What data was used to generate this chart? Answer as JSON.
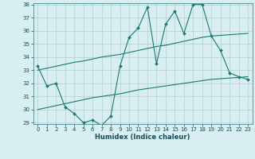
{
  "x": [
    0,
    1,
    2,
    3,
    4,
    5,
    6,
    7,
    8,
    9,
    10,
    11,
    12,
    13,
    14,
    15,
    16,
    17,
    18,
    19,
    20,
    21,
    22,
    23
  ],
  "line1": [
    33.3,
    31.8,
    32.0,
    30.2,
    29.7,
    29.0,
    29.2,
    28.8,
    29.5,
    33.3,
    35.5,
    36.2,
    37.8,
    33.5,
    36.5,
    37.5,
    35.8,
    38.0,
    38.0,
    35.6,
    34.5,
    32.8,
    32.5,
    32.3
  ],
  "line2": [
    33.0,
    33.15,
    33.3,
    33.45,
    33.6,
    33.7,
    33.85,
    34.0,
    34.1,
    34.2,
    34.35,
    34.5,
    34.65,
    34.8,
    34.9,
    35.05,
    35.2,
    35.35,
    35.5,
    35.6,
    35.65,
    35.7,
    35.75,
    35.8
  ],
  "line3": [
    30.0,
    30.15,
    30.3,
    30.45,
    30.6,
    30.75,
    30.9,
    31.0,
    31.1,
    31.2,
    31.35,
    31.5,
    31.6,
    31.7,
    31.8,
    31.9,
    32.0,
    32.1,
    32.2,
    32.3,
    32.35,
    32.4,
    32.45,
    32.5
  ],
  "color": "#1a7a6e",
  "bg_color": "#d8eef0",
  "grid_color": "#b0cdd5",
  "xlabel": "Humidex (Indice chaleur)",
  "ylim": [
    29,
    38
  ],
  "xlim": [
    -0.5,
    23.5
  ],
  "yticks": [
    29,
    30,
    31,
    32,
    33,
    34,
    35,
    36,
    37,
    38
  ],
  "xticks": [
    0,
    1,
    2,
    3,
    4,
    5,
    6,
    7,
    8,
    9,
    10,
    11,
    12,
    13,
    14,
    15,
    16,
    17,
    18,
    19,
    20,
    21,
    22,
    23
  ],
  "markersize": 2.0,
  "linewidth": 0.8,
  "tick_fontsize": 5.0,
  "xlabel_fontsize": 6.0
}
